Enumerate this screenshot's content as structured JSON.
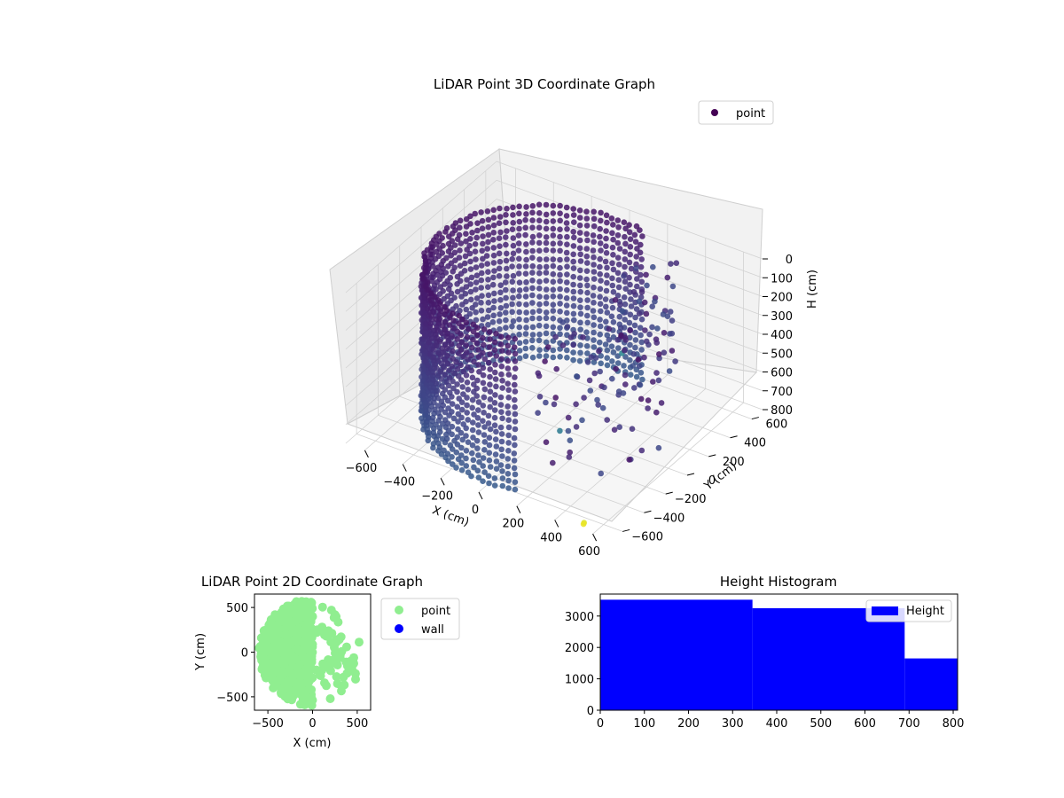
{
  "chart_data": [
    {
      "type": "scatter",
      "projection": "3d",
      "title": "LiDAR Point 3D Coordinate Graph",
      "xlabel": "X (cm)",
      "ylabel": "Y (cm)",
      "zlabel": "H (cm)",
      "xticks": [
        "−600",
        "−400",
        "−200",
        "0",
        "200",
        "400",
        "600"
      ],
      "yticks": [
        "−600",
        "−400",
        "−200",
        "0",
        "200",
        "400",
        "600"
      ],
      "zticks": [
        "0",
        "100",
        "200",
        "300",
        "400",
        "500",
        "600",
        "700",
        "800"
      ],
      "xlim": [
        -700,
        700
      ],
      "ylim": [
        -700,
        700
      ],
      "zlim": [
        0,
        800
      ],
      "z_inverted": true,
      "colormap": "viridis",
      "legend": {
        "position": "upper-right",
        "entries": [
          {
            "label": "point",
            "color": "#440154"
          }
        ]
      },
      "series": [
        {
          "name": "point",
          "shape": "half-cylinder wall, radius ≈ 600 cm, height 0–800 cm, opening toward +X with scattered outliers"
        }
      ],
      "grid": true
    },
    {
      "type": "scatter",
      "title": "LiDAR Point 2D Coordinate Graph",
      "xlabel": "X (cm)",
      "ylabel": "Y (cm)",
      "xticks": [
        "−500",
        "0",
        "500"
      ],
      "yticks": [
        "−500",
        "0",
        "500"
      ],
      "xlim": [
        -650,
        650
      ],
      "ylim": [
        -650,
        650
      ],
      "legend": {
        "position": "outside-right",
        "entries": [
          {
            "label": "point",
            "color": "#90ee90"
          },
          {
            "label": "wall",
            "color": "#0000ff"
          }
        ]
      },
      "series": [
        {
          "name": "point",
          "color": "#90ee90"
        },
        {
          "name": "wall",
          "color": "#0000ff"
        }
      ]
    },
    {
      "type": "bar",
      "histogram": true,
      "title": "Height Histogram",
      "xticks": [
        "0",
        "100",
        "200",
        "300",
        "400",
        "500",
        "600",
        "700",
        "800"
      ],
      "yticks": [
        "0",
        "1000",
        "2000",
        "3000"
      ],
      "xlim": [
        0,
        810
      ],
      "ylim": [
        0,
        3700
      ],
      "bins": [
        {
          "x0": 0,
          "x1": 345,
          "value": 3520
        },
        {
          "x0": 345,
          "x1": 690,
          "value": 3250
        },
        {
          "x0": 690,
          "x1": 810,
          "value": 1650
        }
      ],
      "color": "#0000ff",
      "legend": {
        "position": "upper-right",
        "entries": [
          {
            "label": "Height",
            "color": "#0000ff"
          }
        ]
      }
    }
  ]
}
